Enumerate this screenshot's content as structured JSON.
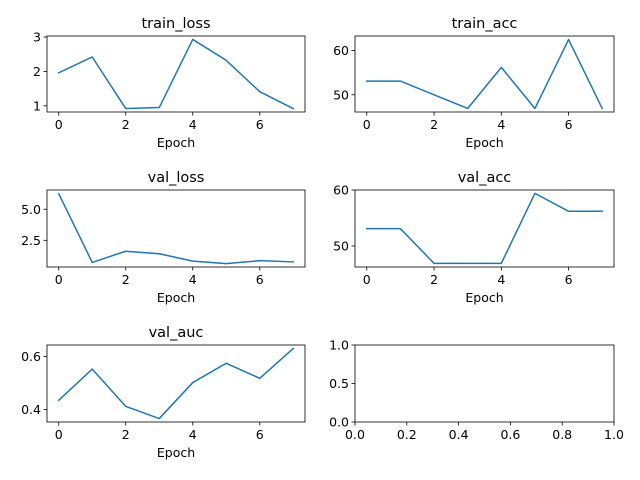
{
  "figure": {
    "line_color": "#1f77b4"
  },
  "chart_data": [
    {
      "type": "line",
      "title": "train_loss",
      "xlabel": "Epoch",
      "x": [
        0,
        1,
        2,
        3,
        4,
        5,
        6,
        7
      ],
      "series": [
        {
          "values": [
            1.96,
            2.42,
            0.92,
            0.95,
            2.93,
            2.32,
            1.41,
            0.92
          ]
        }
      ],
      "xlim": [
        -0.35,
        7.35
      ],
      "ylim": [
        0.82,
        3.03
      ],
      "xticks": [
        0,
        2,
        4,
        6
      ],
      "yticks": [
        1,
        2,
        3
      ],
      "yticklabels": [
        "1",
        "2",
        "3"
      ]
    },
    {
      "type": "line",
      "title": "train_acc",
      "xlabel": "Epoch",
      "x": [
        0,
        1,
        2,
        3,
        4,
        5,
        6,
        7
      ],
      "series": [
        {
          "values": [
            53.1,
            53.1,
            50.0,
            46.9,
            56.2,
            46.9,
            62.5,
            46.9
          ]
        }
      ],
      "xlim": [
        -0.35,
        7.35
      ],
      "ylim": [
        46.1,
        63.3
      ],
      "xticks": [
        0,
        2,
        4,
        6
      ],
      "yticks": [
        50,
        60
      ],
      "yticklabels": [
        "50",
        "60"
      ]
    },
    {
      "type": "line",
      "title": "val_loss",
      "xlabel": "Epoch",
      "x": [
        0,
        1,
        2,
        3,
        4,
        5,
        6,
        7
      ],
      "series": [
        {
          "values": [
            6.25,
            0.72,
            1.62,
            1.42,
            0.82,
            0.62,
            0.86,
            0.76
          ]
        }
      ],
      "xlim": [
        -0.35,
        7.35
      ],
      "ylim": [
        0.35,
        6.55
      ],
      "xticks": [
        0,
        2,
        4,
        6
      ],
      "yticks": [
        2.5,
        5.0
      ],
      "yticklabels": [
        "2.5",
        "5.0"
      ]
    },
    {
      "type": "line",
      "title": "val_acc",
      "xlabel": "Epoch",
      "x": [
        0,
        1,
        2,
        3,
        4,
        5,
        6,
        7
      ],
      "series": [
        {
          "values": [
            53.1,
            53.1,
            46.9,
            46.9,
            46.9,
            59.4,
            56.2,
            56.2
          ]
        }
      ],
      "xlim": [
        -0.35,
        7.35
      ],
      "ylim": [
        46.25,
        60.0
      ],
      "xticks": [
        0,
        2,
        4,
        6
      ],
      "yticks": [
        50,
        60
      ],
      "yticklabels": [
        "50",
        "60"
      ]
    },
    {
      "type": "line",
      "title": "val_auc",
      "xlabel": "Epoch",
      "x": [
        0,
        1,
        2,
        3,
        4,
        5,
        6,
        7
      ],
      "series": [
        {
          "values": [
            0.435,
            0.553,
            0.412,
            0.366,
            0.502,
            0.575,
            0.518,
            0.631
          ]
        }
      ],
      "xlim": [
        -0.35,
        7.35
      ],
      "ylim": [
        0.353,
        0.644
      ],
      "xticks": [
        0,
        2,
        4,
        6
      ],
      "yticks": [
        0.4,
        0.6
      ],
      "yticklabels": [
        "0.4",
        "0.6"
      ]
    },
    {
      "type": "line",
      "title": "",
      "xlabel": "",
      "x": [],
      "series": [],
      "xlim": [
        0,
        1
      ],
      "ylim": [
        0,
        1
      ],
      "xticks": [
        0,
        0.2,
        0.4,
        0.6,
        0.8,
        1.0
      ],
      "xticklabels": [
        "0.0",
        "0.2",
        "0.4",
        "0.6",
        "0.8",
        "1.0"
      ],
      "yticks": [
        0,
        0.5,
        1.0
      ],
      "yticklabels": [
        "0.0",
        "0.5",
        "1.0"
      ]
    }
  ]
}
